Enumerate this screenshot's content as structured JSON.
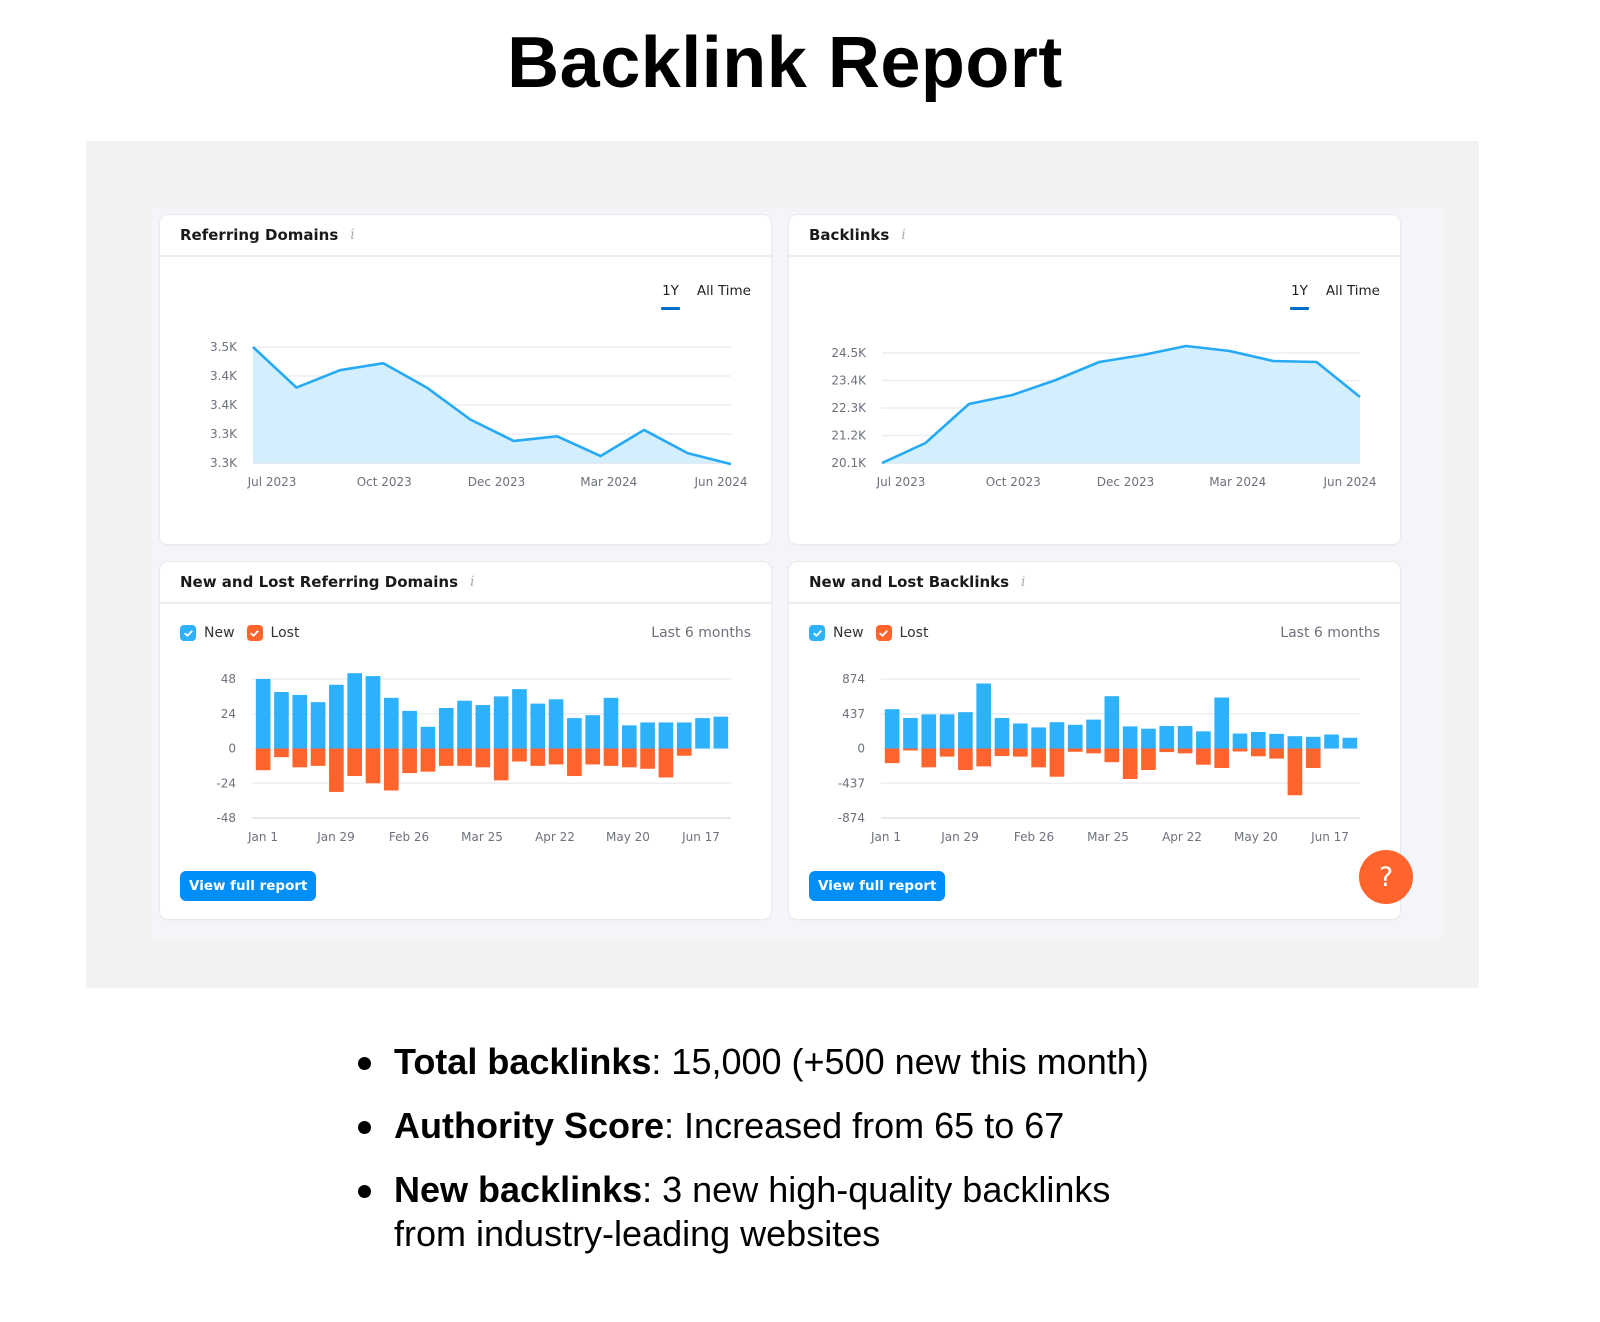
{
  "page": {
    "title": "Backlink Report"
  },
  "colors": {
    "line": "#26aaf5",
    "area": "#d3eefd",
    "new": "#2db1fb",
    "lost": "#ff642d",
    "accent": "#006dca",
    "button": "#008ff8",
    "help": "#ff642d"
  },
  "cards": {
    "referring_domains": {
      "title": "Referring Domains",
      "info_icon": "info-icon",
      "tabs": [
        "1Y",
        "All Time"
      ],
      "active_tab": "1Y"
    },
    "backlinks": {
      "title": "Backlinks",
      "info_icon": "info-icon",
      "tabs": [
        "1Y",
        "All Time"
      ],
      "active_tab": "1Y"
    },
    "new_lost_domains": {
      "title": "New and Lost Referring Domains",
      "legend_new": "New",
      "legend_lost": "Lost",
      "range": "Last 6 months",
      "button": "View full report"
    },
    "new_lost_backlinks": {
      "title": "New and Lost Backlinks",
      "legend_new": "New",
      "legend_lost": "Lost",
      "range": "Last 6 months",
      "button": "View full report"
    }
  },
  "help_button": {
    "label": "?"
  },
  "summary": [
    {
      "label": "Total backlinks",
      "text": ": 15,000 (+500 new this month)"
    },
    {
      "label": "Authority Score",
      "text": ": Increased from 65 to 67"
    },
    {
      "label": "New backlinks",
      "text": ": 3 new high-quality backlinks from industry-leading websites"
    }
  ],
  "chart_data": [
    {
      "id": "referring_domains",
      "type": "area",
      "title": "Referring Domains",
      "x_ticks": [
        "Jul 2023",
        "Oct 2023",
        "Dec 2023",
        "Mar 2024",
        "Jun 2024"
      ],
      "y_ticks": [
        "3.5K",
        "3.4K",
        "3.4K",
        "3.3K",
        "3.3K"
      ],
      "ylim": [
        3300,
        3500
      ],
      "grid": true,
      "values": [
        3500,
        3430,
        3460,
        3472,
        3430,
        3375,
        3338,
        3346,
        3312,
        3357,
        3317,
        3298
      ]
    },
    {
      "id": "backlinks",
      "type": "area",
      "title": "Backlinks",
      "x_ticks": [
        "Jul 2023",
        "Oct 2023",
        "Dec 2023",
        "Mar 2024",
        "Jun 2024"
      ],
      "y_ticks": [
        "24.5K",
        "23.4K",
        "22.3K",
        "21.2K",
        "20.1K"
      ],
      "ylim": [
        20100,
        24500
      ],
      "grid": true,
      "values": [
        20100,
        20900,
        22460,
        22820,
        23420,
        24140,
        24420,
        24780,
        24580,
        24180,
        24140,
        22740
      ]
    },
    {
      "id": "new_lost_domains",
      "type": "bar",
      "title": "New and Lost Referring Domains",
      "x_ticks": [
        "Jan 1",
        "Jan 29",
        "Feb 26",
        "Mar 25",
        "Apr 22",
        "May 20",
        "Jun 17"
      ],
      "y_ticks": [
        "48",
        "24",
        "0",
        "-24",
        "-48"
      ],
      "ylim": [
        -48,
        48
      ],
      "legend": [
        "New",
        "Lost"
      ],
      "series": [
        {
          "name": "New",
          "values": [
            48,
            39,
            37,
            32,
            44,
            52,
            50,
            35,
            26,
            15,
            28,
            33,
            30,
            36,
            41,
            31,
            34,
            21,
            23,
            35,
            16,
            18,
            18,
            18,
            21,
            22
          ]
        },
        {
          "name": "Lost",
          "values": [
            -15,
            -6,
            -13,
            -12,
            -30,
            -19,
            -24,
            -29,
            -17,
            -16,
            -12,
            -12,
            -13,
            -22,
            -9,
            -12,
            -11,
            -19,
            -11,
            -12,
            -13,
            -14,
            -20,
            -5,
            0,
            0
          ]
        }
      ]
    },
    {
      "id": "new_lost_backlinks",
      "type": "bar",
      "title": "New and Lost Backlinks",
      "x_ticks": [
        "Jan 1",
        "Jan 29",
        "Feb 26",
        "Mar 25",
        "Apr 22",
        "May 20",
        "Jun 17"
      ],
      "y_ticks": [
        "874",
        "437",
        "0",
        "-437",
        "-874"
      ],
      "ylim": [
        -874,
        874
      ],
      "legend": [
        "New",
        "Lost"
      ],
      "series": [
        {
          "name": "New",
          "values": [
            494,
            384,
            429,
            429,
            457,
            817,
            384,
            314,
            265,
            331,
            298,
            363,
            658,
            278,
            249,
            282,
            282,
            216,
            641,
            188,
            208,
            184,
            155,
            147,
            176,
            135
          ]
        },
        {
          "name": "Lost",
          "values": [
            -184,
            -25,
            -237,
            -102,
            -270,
            -225,
            -94,
            -102,
            -237,
            -355,
            -41,
            -61,
            -172,
            -384,
            -270,
            -45,
            -61,
            -204,
            -245,
            -37,
            -98,
            -127,
            -588,
            -245,
            0,
            0
          ]
        }
      ]
    }
  ]
}
